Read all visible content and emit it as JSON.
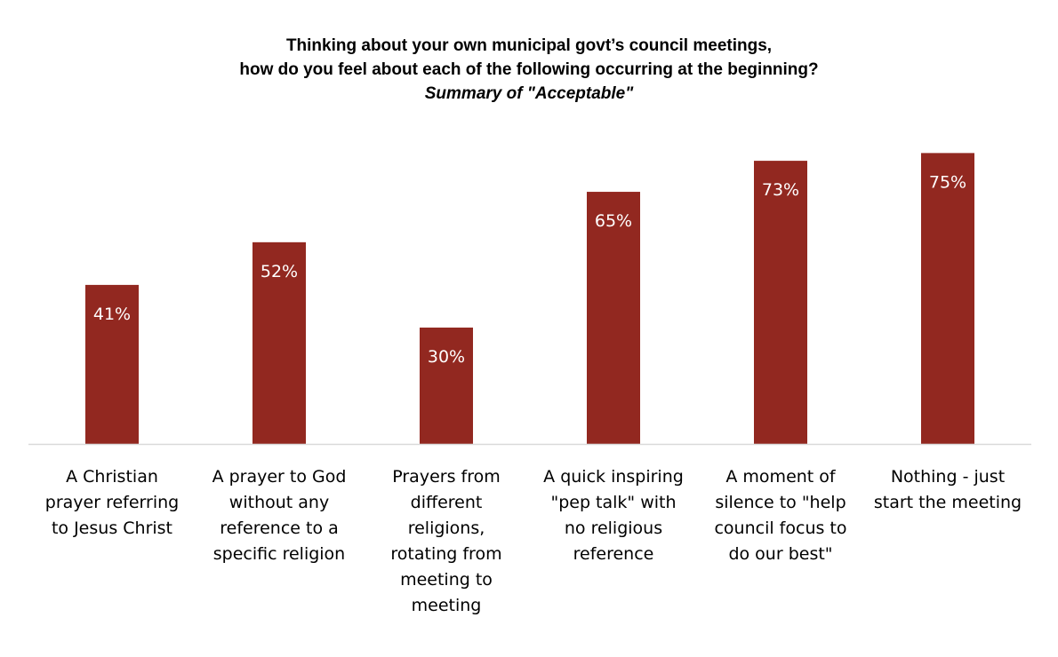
{
  "chart_data": {
    "type": "bar",
    "title": "Thinking about your own municipal govt’s council meetings,",
    "title_line2": "how do you feel about each of the following occurring at the beginning?",
    "subtitle": "Summary of \"Acceptable\"",
    "categories": [
      "A Christian prayer referring to Jesus Christ",
      "A prayer to God without any reference to a specific religion",
      "Prayers from different religions, rotating from meeting to meeting",
      "A quick inspiring \"pep talk\" with no religious reference",
      "A moment of silence to \"help council focus to do our best\"",
      "Nothing - just start the meeting"
    ],
    "category_lines": [
      [
        "A Christian",
        "prayer referring",
        "to Jesus Christ"
      ],
      [
        "A prayer to God",
        "without any",
        "reference to a",
        "specific religion"
      ],
      [
        "Prayers from",
        "different",
        "religions,",
        "rotating from",
        "meeting to",
        "meeting"
      ],
      [
        "A quick inspiring",
        "\"pep talk\" with",
        "no religious",
        "reference"
      ],
      [
        "A moment of",
        "silence to \"help",
        "council focus to",
        "do our best\""
      ],
      [
        "Nothing - just",
        "start the meeting"
      ]
    ],
    "values": [
      41,
      52,
      30,
      65,
      73,
      75
    ],
    "data_labels": [
      "41%",
      "52%",
      "30%",
      "65%",
      "73%",
      "75%"
    ],
    "ylim": [
      0,
      76
    ],
    "grid": false,
    "legend": "none",
    "bar_color": "#922820",
    "axis_color": "#d9d9d9"
  }
}
